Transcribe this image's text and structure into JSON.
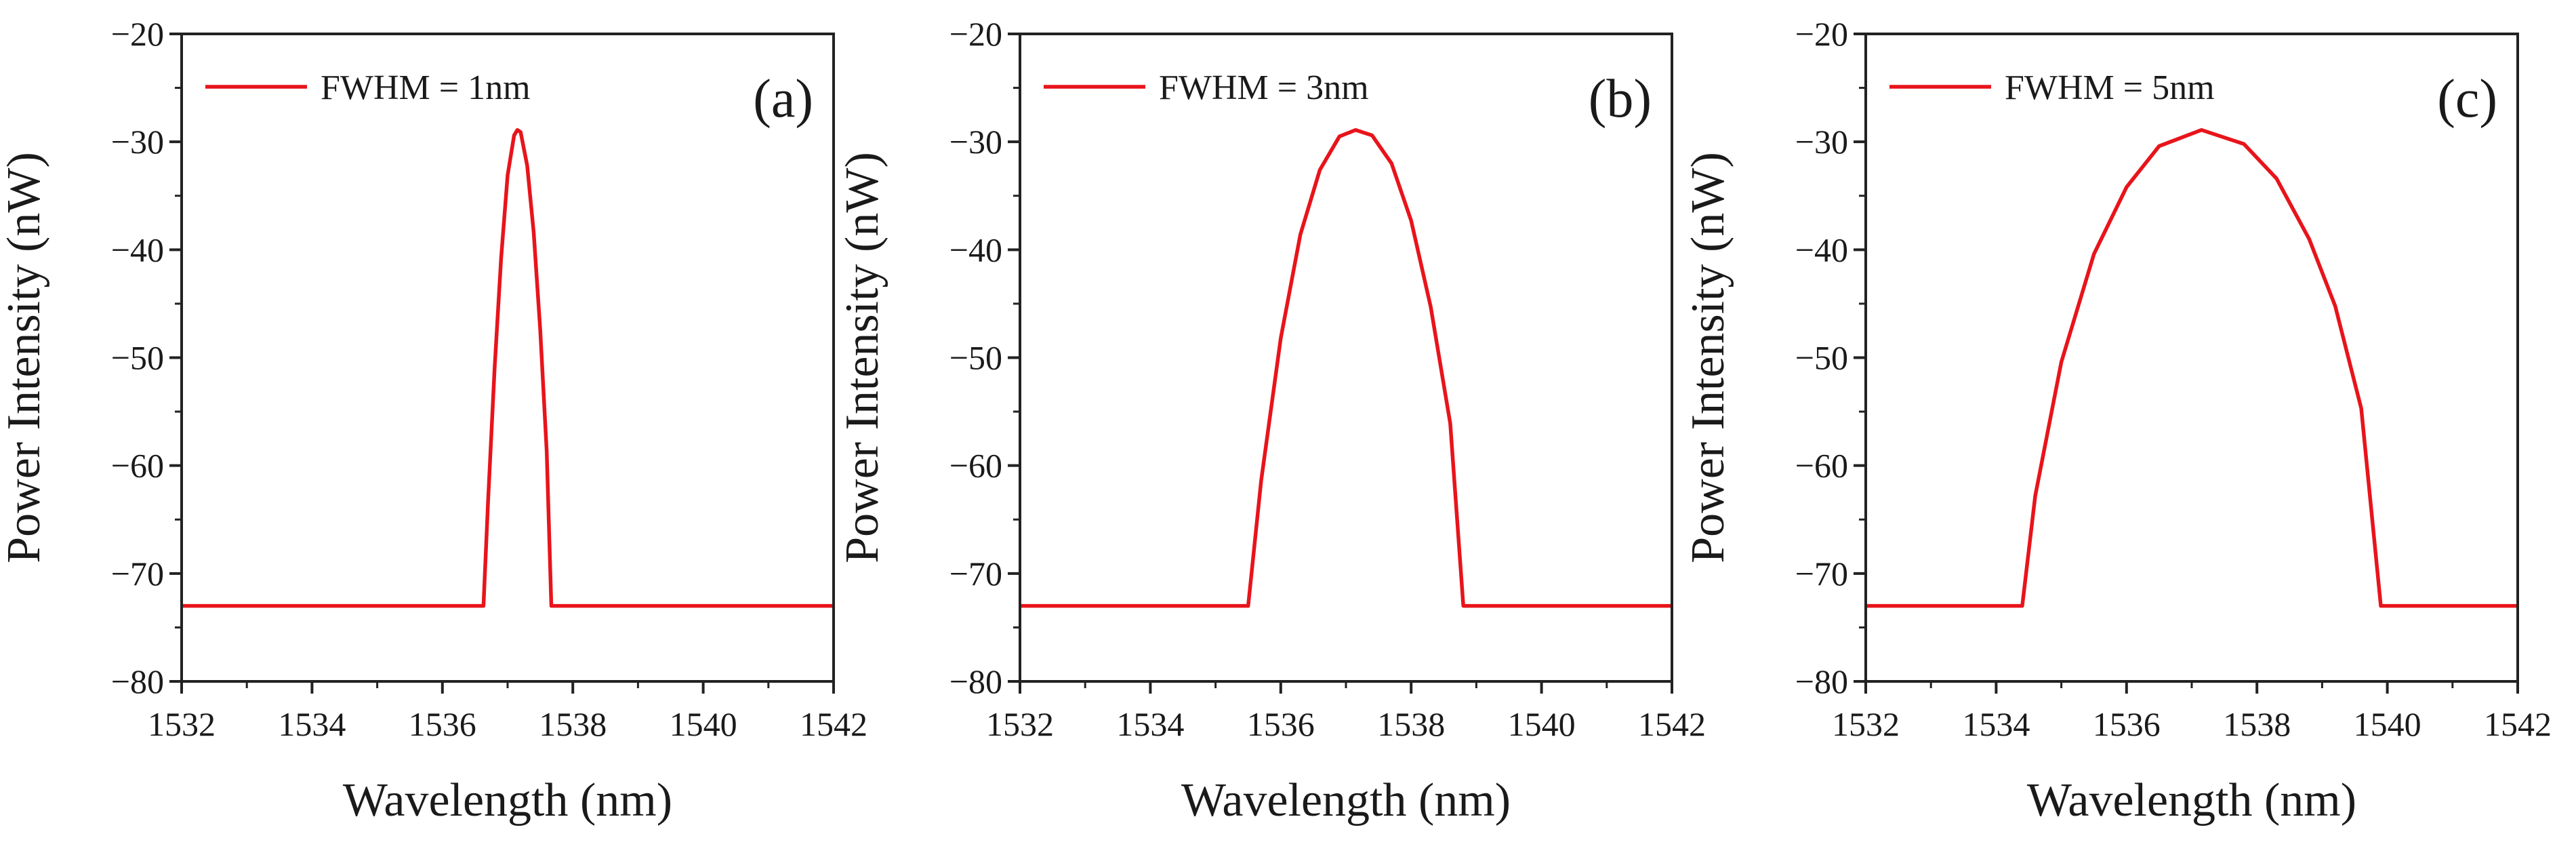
{
  "chart_data": [
    {
      "type": "line",
      "xlabel": "Wavelength (nm)",
      "ylabel": "Power Intensity (nW)",
      "xlim": [
        1532,
        1542
      ],
      "ylim": [
        -80,
        -20
      ],
      "x_ticks": [
        "1532",
        "1534",
        "1536",
        "1538",
        "1540",
        "1542"
      ],
      "y_ticks": [
        "−20",
        "−30",
        "−40",
        "−50",
        "−60",
        "−70",
        "−80"
      ],
      "panel_label": "(a)",
      "legend": "top-left",
      "grid": false,
      "series": [
        {
          "name": "FWHM = 1nm",
          "color": "#e8141b",
          "x": [
            1532,
            1536.63,
            1536.7,
            1536.8,
            1536.9,
            1537.0,
            1537.1,
            1537.15,
            1537.2,
            1537.3,
            1537.4,
            1537.5,
            1537.6,
            1537.67,
            1542
          ],
          "y": [
            -73,
            -73,
            -63.4,
            -51.0,
            -40.8,
            -33.1,
            -29.4,
            -28.9,
            -29.1,
            -32.2,
            -38.4,
            -47.4,
            -58.7,
            -73,
            -73
          ]
        }
      ]
    },
    {
      "type": "line",
      "xlabel": "Wavelength (nm)",
      "ylabel": "Power Intensity (nW)",
      "xlim": [
        1532,
        1542
      ],
      "ylim": [
        -80,
        -20
      ],
      "x_ticks": [
        "1532",
        "1534",
        "1536",
        "1538",
        "1540",
        "1542"
      ],
      "y_ticks": [
        "−20",
        "−30",
        "−40",
        "−50",
        "−60",
        "−70",
        "−80"
      ],
      "panel_label": "(b)",
      "legend": "top-left",
      "grid": false,
      "series": [
        {
          "name": "FWHM = 3nm",
          "color": "#e8141b",
          "x": [
            1532,
            1535.5,
            1535.7,
            1536.0,
            1536.3,
            1536.6,
            1536.9,
            1537.15,
            1537.4,
            1537.7,
            1538.0,
            1538.3,
            1538.6,
            1538.8,
            1542
          ],
          "y": [
            -73,
            -73,
            -61.4,
            -48.2,
            -38.6,
            -32.6,
            -29.5,
            -28.9,
            -29.4,
            -32.0,
            -37.3,
            -45.3,
            -56.1,
            -73,
            -73
          ]
        }
      ]
    },
    {
      "type": "line",
      "xlabel": "Wavelength (nm)",
      "ylabel": "Power Intensity (nW)",
      "xlim": [
        1532,
        1542
      ],
      "ylim": [
        -80,
        -20
      ],
      "x_ticks": [
        "1532",
        "1534",
        "1536",
        "1538",
        "1540",
        "1542"
      ],
      "y_ticks": [
        "−20",
        "−30",
        "−40",
        "−50",
        "−60",
        "−70",
        "−80"
      ],
      "panel_label": "(c)",
      "legend": "top-left",
      "grid": false,
      "series": [
        {
          "name": "FWHM = 5nm",
          "color": "#e8141b",
          "x": [
            1532,
            1534.4,
            1534.6,
            1535.0,
            1535.5,
            1536.0,
            1536.5,
            1537.15,
            1537.8,
            1538.3,
            1538.8,
            1539.2,
            1539.6,
            1539.9,
            1542
          ],
          "y": [
            -73,
            -73,
            -62.8,
            -50.4,
            -40.4,
            -34.2,
            -30.4,
            -28.9,
            -30.2,
            -33.4,
            -39.0,
            -45.2,
            -54.7,
            -73,
            -73
          ]
        }
      ]
    }
  ]
}
